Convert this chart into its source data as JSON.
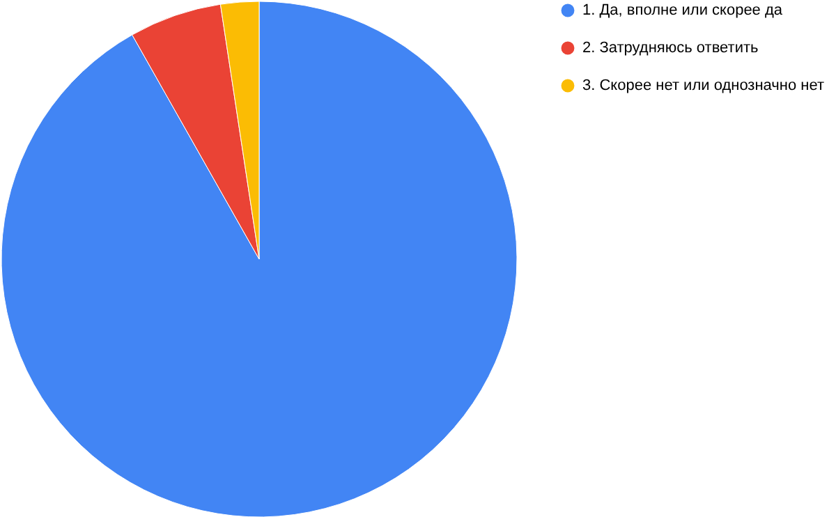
{
  "chart_data": {
    "type": "pie",
    "categories": [
      "1. Да, вполне или скорее да",
      "2. Затрудняюсь ответить",
      "3. Скорее нет или однозначно нет"
    ],
    "values": [
      91.8,
      5.8,
      2.4
    ],
    "colors": [
      "#4285f4",
      "#ea4335",
      "#fbbc04"
    ],
    "legend": "right"
  }
}
